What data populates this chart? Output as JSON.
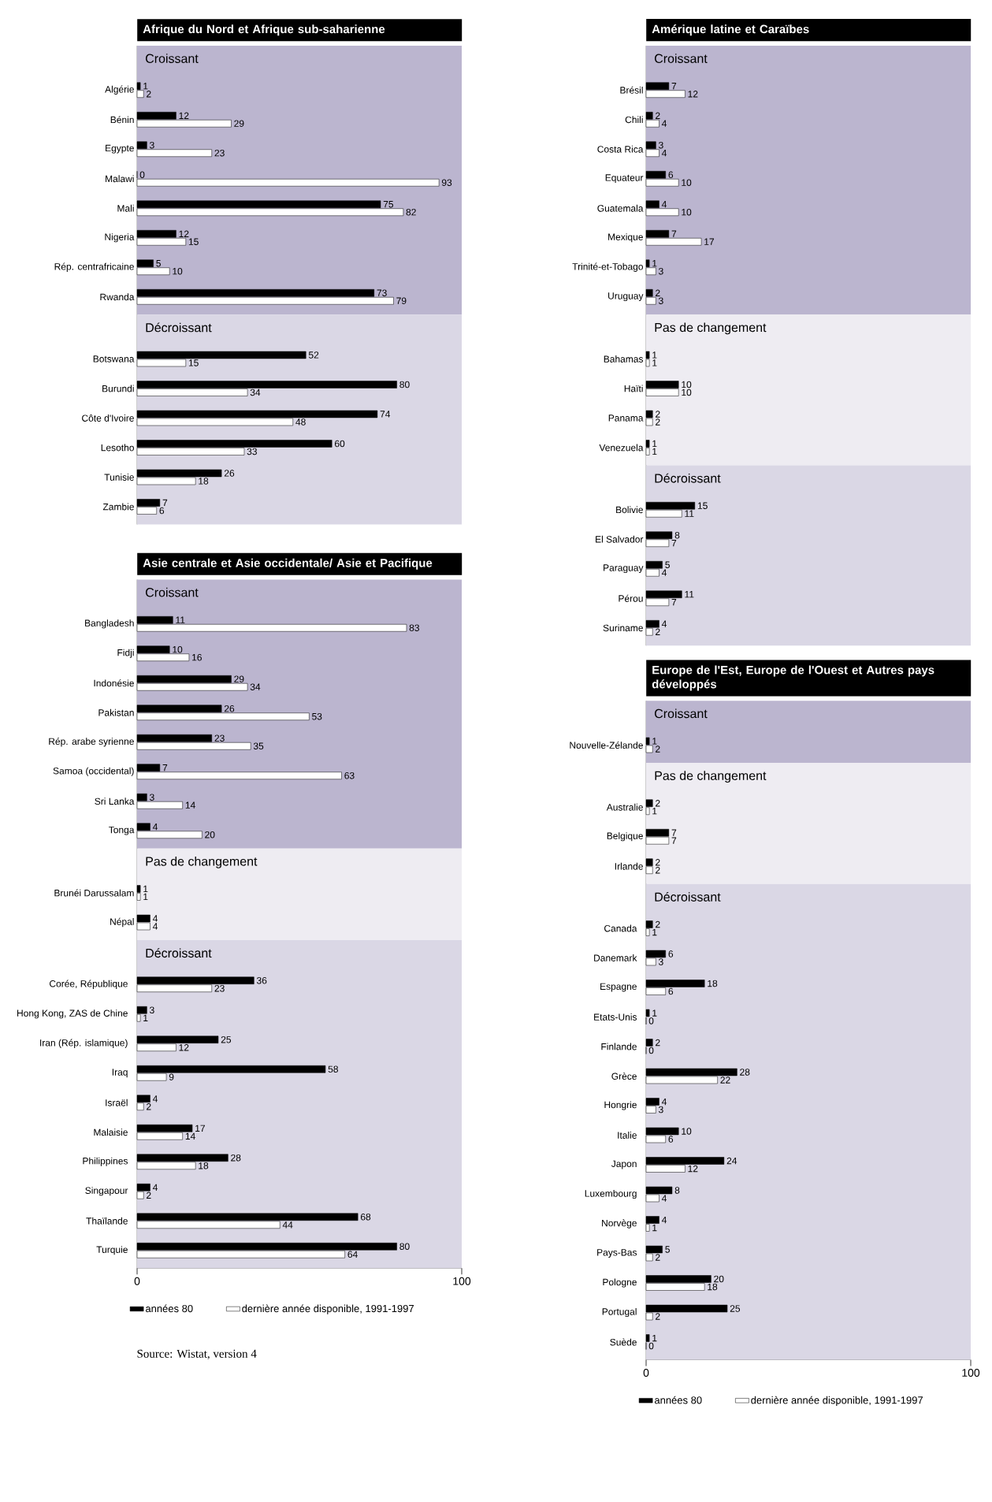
{
  "chart_data": [
    {
      "type": "bar",
      "orientation": "horizontal",
      "title": "Afrique du Nord et Afrique sub-saharienne",
      "categories": [
        "Algérie",
        "Bénin",
        "Egypte",
        "Malawi",
        "Mali",
        "Nigeria",
        "Rép. centrafricaine",
        "Rwanda"
      ],
      "series": [
        {
          "color": "#000000",
          "values": [
            1,
            12,
            3,
            0,
            75,
            12,
            5,
            73
          ]
        },
        {
          "color": "#ffffff",
          "values": [
            2,
            29,
            23,
            93,
            82,
            15,
            10,
            79
          ]
        }
      ],
      "bands": [
        {
          "axis": "x",
          "from": 0,
          "to": 100,
          "label": "Croissant",
          "color": "#bbb5cf"
        }
      ],
      "xlim": [
        0,
        100
      ],
      "tick_labels": "y",
      "data_labels": true
    },
    {
      "type": "bar",
      "orientation": "horizontal",
      "categories": [
        "Botswana",
        "Burundi",
        "Côte d'Ivoire",
        "Lesotho",
        "Tunisie",
        "Zambie"
      ],
      "series": [
        {
          "color": "#000000",
          "values": [
            52,
            80,
            74,
            60,
            26,
            7
          ]
        },
        {
          "color": "#ffffff",
          "values": [
            15,
            34,
            48,
            33,
            18,
            6
          ]
        }
      ],
      "bands": [
        {
          "axis": "x",
          "from": 0,
          "to": 100,
          "label": "Décroissant",
          "color": "#dad7e5"
        }
      ],
      "xlim": [
        0,
        100
      ],
      "tick_labels": "y",
      "data_labels": true
    },
    {
      "type": "bar",
      "orientation": "horizontal",
      "title": "Asie centrale et Asie occidentale/ Asie et Pacifique",
      "categories": [
        "Bangladesh",
        "Fidji",
        "Indonésie",
        "Pakistan",
        "Rép. arabe syrienne",
        "Samoa (occidental)",
        "Sri Lanka",
        "Tonga"
      ],
      "series": [
        {
          "color": "#000000",
          "values": [
            11,
            10,
            29,
            26,
            23,
            7,
            3,
            4
          ]
        },
        {
          "color": "#ffffff",
          "values": [
            83,
            16,
            34,
            53,
            35,
            63,
            14,
            20
          ]
        }
      ],
      "bands": [
        {
          "axis": "x",
          "from": 0,
          "to": 100,
          "label": "Croissant",
          "color": "#bbb5cf"
        }
      ],
      "xlim": [
        0,
        100
      ],
      "tick_labels": "y",
      "data_labels": true
    },
    {
      "type": "bar",
      "orientation": "horizontal",
      "categories": [
        "Brunéi Darussalam",
        "Népal"
      ],
      "series": [
        {
          "color": "#000000",
          "values": [
            1,
            4
          ]
        },
        {
          "color": "#ffffff",
          "values": [
            1,
            4
          ]
        }
      ],
      "bands": [
        {
          "axis": "x",
          "from": 0,
          "to": 100,
          "label": "Pas de changement",
          "color": "#eeecf2"
        }
      ],
      "xlim": [
        0,
        100
      ],
      "tick_labels": "y",
      "data_labels": true
    },
    {
      "type": "bar",
      "orientation": "horizontal",
      "categories": [
        "Corée, République",
        "Hong Kong, ZAS de Chine",
        "Iran (Rép. islamique)",
        "Iraq",
        "Israël",
        "Malaisie",
        "Philippines",
        "Singapour",
        "Thaïlande",
        "Turquie"
      ],
      "series": [
        {
          "name": "années 80",
          "color": "#000000",
          "values": [
            36,
            3,
            25,
            58,
            4,
            17,
            28,
            4,
            68,
            80
          ]
        },
        {
          "name": "dernière année disponible, 1991-1997",
          "color": "#ffffff",
          "values": [
            23,
            1,
            12,
            9,
            2,
            14,
            18,
            2,
            44,
            64
          ]
        }
      ],
      "bands": [
        {
          "axis": "x",
          "from": 0,
          "to": 100,
          "label": "Décroissant",
          "color": "#dad7e5"
        }
      ],
      "xlim": [
        0,
        100
      ],
      "xticks": [
        0,
        100
      ],
      "data_labels": true,
      "legend": "bottom",
      "annotations": [
        "Source: Wistat, version 4"
      ]
    },
    {
      "type": "bar",
      "orientation": "horizontal",
      "title": "Amérique latine et Caraïbes",
      "categories": [
        "Brésil",
        "Chili",
        "Costa Rica",
        "Equateur",
        "Guatemala",
        "Mexique",
        "Trinité-et-Tobago",
        "Uruguay"
      ],
      "series": [
        {
          "color": "#000000",
          "values": [
            7,
            2,
            3,
            6,
            4,
            7,
            1,
            2
          ]
        },
        {
          "color": "#ffffff",
          "values": [
            12,
            4,
            4,
            10,
            10,
            17,
            3,
            3
          ]
        }
      ],
      "bands": [
        {
          "axis": "x",
          "from": 0,
          "to": 100,
          "label": "Croissant",
          "color": "#bbb5cf"
        }
      ],
      "xlim": [
        0,
        100
      ],
      "tick_labels": "y",
      "data_labels": true
    },
    {
      "type": "bar",
      "orientation": "horizontal",
      "categories": [
        "Bahamas",
        "Haïti",
        "Panama",
        "Venezuela"
      ],
      "series": [
        {
          "color": "#000000",
          "values": [
            1,
            10,
            2,
            1
          ]
        },
        {
          "color": "#ffffff",
          "values": [
            1,
            10,
            2,
            1
          ]
        }
      ],
      "bands": [
        {
          "axis": "x",
          "from": 0,
          "to": 100,
          "label": "Pas de changement",
          "color": "#eeecf2"
        }
      ],
      "xlim": [
        0,
        100
      ],
      "tick_labels": "y",
      "data_labels": true
    },
    {
      "type": "bar",
      "orientation": "horizontal",
      "categories": [
        "Bolivie",
        "El Salvador",
        "Paraguay",
        "Pérou",
        "Suriname"
      ],
      "series": [
        {
          "color": "#000000",
          "values": [
            15,
            8,
            5,
            11,
            4
          ]
        },
        {
          "color": "#ffffff",
          "values": [
            11,
            7,
            4,
            7,
            2
          ]
        }
      ],
      "bands": [
        {
          "axis": "x",
          "from": 0,
          "to": 100,
          "label": "Décroissant",
          "color": "#dad7e5"
        }
      ],
      "xlim": [
        0,
        100
      ],
      "tick_labels": "y",
      "data_labels": true
    },
    {
      "type": "bar",
      "orientation": "horizontal",
      "title": "Europe de l'Est, Europe de l'Ouest et Autres pays développés",
      "categories": [
        "Nouvelle-Zélande"
      ],
      "series": [
        {
          "color": "#000000",
          "values": [
            1
          ]
        },
        {
          "color": "#ffffff",
          "values": [
            2
          ]
        }
      ],
      "bands": [
        {
          "axis": "x",
          "from": 0,
          "to": 100,
          "label": "Croissant",
          "color": "#bbb5cf"
        }
      ],
      "xlim": [
        0,
        100
      ],
      "tick_labels": "y",
      "data_labels": true
    },
    {
      "type": "bar",
      "orientation": "horizontal",
      "categories": [
        "Australie",
        "Belgique",
        "Irlande"
      ],
      "series": [
        {
          "color": "#000000",
          "values": [
            2,
            7,
            2
          ]
        },
        {
          "color": "#ffffff",
          "values": [
            1,
            7,
            2
          ]
        }
      ],
      "bands": [
        {
          "axis": "x",
          "from": 0,
          "to": 100,
          "label": "Pas de changement",
          "color": "#eeecf2"
        }
      ],
      "xlim": [
        0,
        100
      ],
      "tick_labels": "y",
      "data_labels": true
    },
    {
      "type": "bar",
      "orientation": "horizontal",
      "categories": [
        "Canada",
        "Danemark",
        "Espagne",
        "Etats-Unis",
        "Finlande",
        "Grèce",
        "Hongrie",
        "Italie",
        "Japon",
        "Luxembourg",
        "Norvège",
        "Pays-Bas",
        "Pologne",
        "Portugal",
        "Suède"
      ],
      "series": [
        {
          "name": "années 80",
          "color": "#000000",
          "values": [
            2,
            6,
            18,
            1,
            2,
            28,
            4,
            10,
            24,
            8,
            4,
            5,
            20,
            25,
            1
          ]
        },
        {
          "name": "dernière année disponible, 1991-1997",
          "color": "#ffffff",
          "values": [
            1,
            3,
            6,
            0,
            0,
            22,
            3,
            6,
            12,
            4,
            1,
            2,
            18,
            2,
            0
          ]
        }
      ],
      "bands": [
        {
          "axis": "x",
          "from": 0,
          "to": 100,
          "label": "Décroissant",
          "color": "#dad7e5"
        }
      ],
      "xlim": [
        0,
        100
      ],
      "xticks": [
        0,
        100
      ],
      "data_labels": true,
      "legend": "bottom"
    }
  ]
}
